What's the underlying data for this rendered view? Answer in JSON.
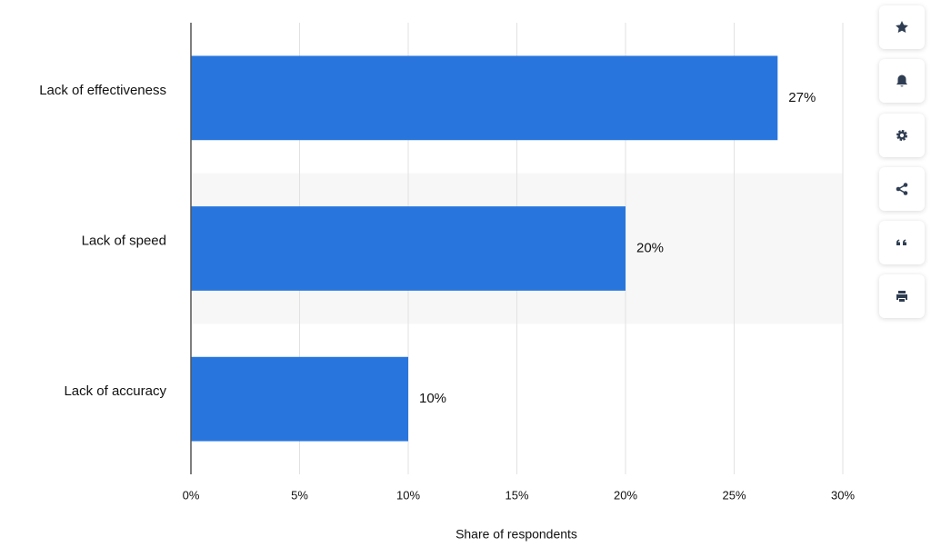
{
  "chart_data": {
    "type": "bar",
    "orientation": "horizontal",
    "categories": [
      "Lack of effectiveness",
      "Lack of speed",
      "Lack of accuracy"
    ],
    "values": [
      27,
      20,
      10
    ],
    "value_labels": [
      "27%",
      "20%",
      "10%"
    ],
    "color": "#2876dd",
    "xlim": [
      0,
      30
    ],
    "xticks": [
      {
        "value": 0,
        "label": "0%"
      },
      {
        "value": 5,
        "label": "5%"
      },
      {
        "value": 10,
        "label": "10%"
      },
      {
        "value": 15,
        "label": "15%"
      },
      {
        "value": 20,
        "label": "20%"
      },
      {
        "value": 25,
        "label": "25%"
      },
      {
        "value": 30,
        "label": "30%"
      }
    ],
    "x_label": "Share of respondents",
    "grid": true
  }
}
